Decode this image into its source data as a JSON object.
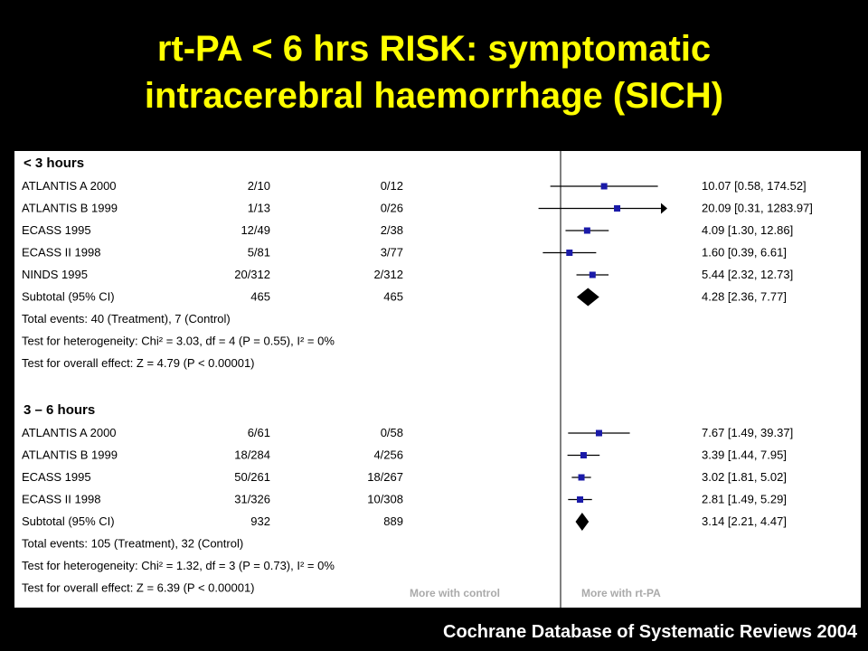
{
  "title_line1": "rt-PA < 6 hrs RISK: symptomatic",
  "title_line2": "intracerebral haemorrhage (SICH)",
  "source": "Cochrane Database of Systematic Reviews 2004",
  "colors": {
    "title": "#ffff00",
    "marker": "#1a1aa8",
    "text": "#000000",
    "background": "#000000",
    "panel": "#ffffff"
  },
  "chart_data": {
    "type": "forest",
    "scale": "log",
    "axis_labels": {
      "left": "More with control",
      "right": "More with rt-PA"
    },
    "groups": [
      {
        "name": "< 3 hours",
        "studies": [
          {
            "study": "ATLANTIS A 2000",
            "treatment": "2/10",
            "control": "0/12",
            "estimate_text": "10.07 [0.58, 174.52]",
            "or": 10.07,
            "lo": 0.58,
            "hi": 174.52
          },
          {
            "study": "ATLANTIS B 1999",
            "treatment": "1/13",
            "control": "0/26",
            "estimate_text": "20.09 [0.31, 1283.97]",
            "or": 20.09,
            "lo": 0.31,
            "hi": 1283.97
          },
          {
            "study": "ECASS 1995",
            "treatment": "12/49",
            "control": "2/38",
            "estimate_text": "4.09 [1.30, 12.86]",
            "or": 4.09,
            "lo": 1.3,
            "hi": 12.86
          },
          {
            "study": "ECASS II 1998",
            "treatment": "5/81",
            "control": "3/77",
            "estimate_text": "1.60 [0.39, 6.61]",
            "or": 1.6,
            "lo": 0.39,
            "hi": 6.61
          },
          {
            "study": "NINDS 1995",
            "treatment": "20/312",
            "control": "2/312",
            "estimate_text": "5.44 [2.32, 12.73]",
            "or": 5.44,
            "lo": 2.32,
            "hi": 12.73
          }
        ],
        "subtotal": {
          "label": "Subtotal (95% CI)",
          "treatment": "465",
          "control": "465",
          "estimate_text": "4.28 [2.36, 7.77]",
          "or": 4.28,
          "lo": 2.36,
          "hi": 7.77
        },
        "notes": [
          "Total events: 40 (Treatment), 7 (Control)",
          "Test for heterogeneity: Chi² = 3.03, df = 4 (P = 0.55), I² = 0%",
          "Test for overall effect: Z = 4.79 (P < 0.00001)"
        ]
      },
      {
        "name": "3 – 6 hours",
        "studies": [
          {
            "study": "ATLANTIS A 2000",
            "treatment": "6/61",
            "control": "0/58",
            "estimate_text": "7.67 [1.49, 39.37]",
            "or": 7.67,
            "lo": 1.49,
            "hi": 39.37
          },
          {
            "study": "ATLANTIS B 1999",
            "treatment": "18/284",
            "control": "4/256",
            "estimate_text": "3.39 [1.44, 7.95]",
            "or": 3.39,
            "lo": 1.44,
            "hi": 7.95
          },
          {
            "study": "ECASS 1995",
            "treatment": "50/261",
            "control": "18/267",
            "estimate_text": "3.02 [1.81, 5.02]",
            "or": 3.02,
            "lo": 1.81,
            "hi": 5.02
          },
          {
            "study": "ECASS II 1998",
            "treatment": "31/326",
            "control": "10/308",
            "estimate_text": "2.81 [1.49, 5.29]",
            "or": 2.81,
            "lo": 1.49,
            "hi": 5.29
          }
        ],
        "subtotal": {
          "label": "Subtotal (95% CI)",
          "treatment": "932",
          "control": "889",
          "estimate_text": "3.14 [2.21, 4.47]",
          "or": 3.14,
          "lo": 2.21,
          "hi": 4.47
        },
        "notes": [
          "Total events: 105 (Treatment), 32 (Control)",
          "Test for heterogeneity: Chi² = 1.32, df = 3 (P = 0.73), I² = 0%",
          "Test for overall effect: Z = 6.39 (P < 0.00001)"
        ]
      }
    ]
  }
}
